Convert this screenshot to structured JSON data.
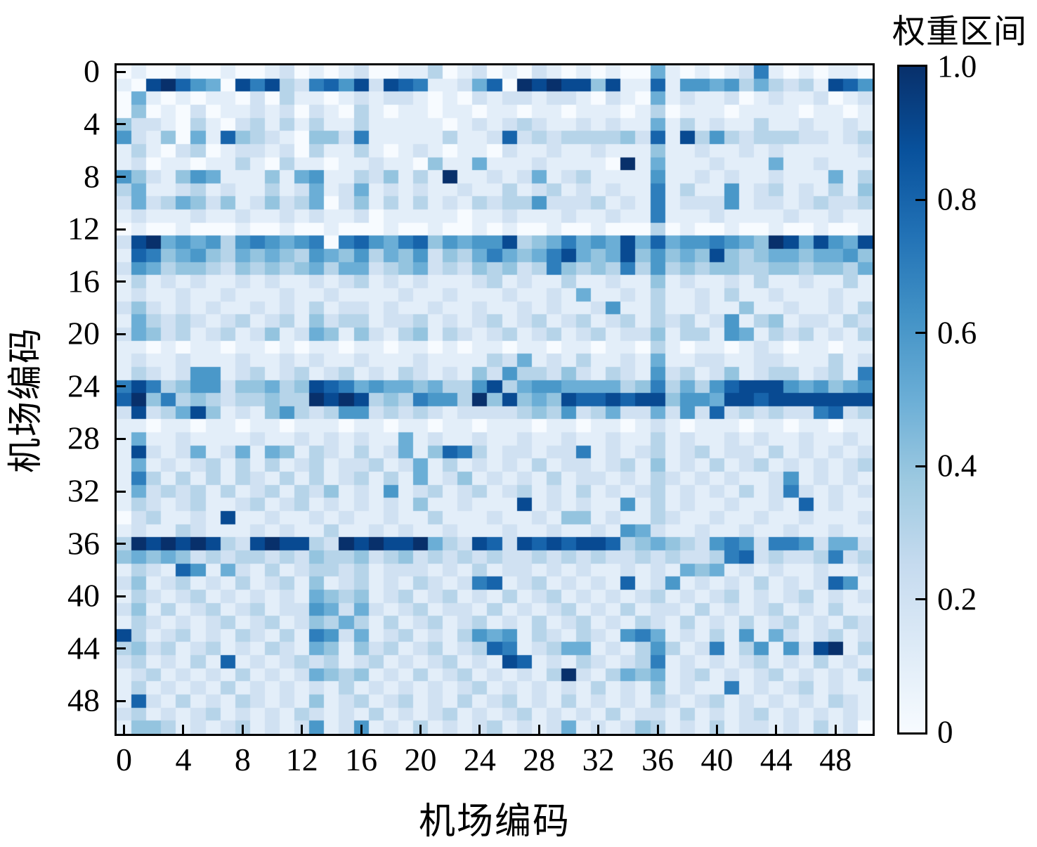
{
  "figure": {
    "xlabel": "机场编码",
    "ylabel": "机场编码",
    "colorbar_title": "权重区间",
    "x_ticks": [
      "0",
      "4",
      "8",
      "12",
      "16",
      "20",
      "24",
      "28",
      "32",
      "36",
      "40",
      "44",
      "48"
    ],
    "y_ticks": [
      "0",
      "4",
      "8",
      "12",
      "16",
      "20",
      "24",
      "28",
      "32",
      "36",
      "40",
      "44",
      "48"
    ],
    "colorbar_ticks": [
      {
        "label": "1.0",
        "value": 1.0
      },
      {
        "label": "0.8",
        "value": 0.8
      },
      {
        "label": "0.6",
        "value": 0.6
      },
      {
        "label": "0.4",
        "value": 0.4
      },
      {
        "label": "0.2",
        "value": 0.2
      },
      {
        "label": "0",
        "value": 0.0
      }
    ],
    "colors": {
      "background": "#ffffff",
      "axis": "#000000",
      "text": "#000000"
    }
  },
  "chart_data": {
    "type": "heatmap",
    "title": "",
    "xlabel": "机场编码",
    "ylabel": "机场编码",
    "colorbar_label": "权重区间",
    "n_rows": 51,
    "n_cols": 51,
    "x_range": [
      0,
      50
    ],
    "y_range": [
      0,
      50
    ],
    "value_range": [
      0,
      1
    ],
    "grid": false,
    "colormap": "Blues",
    "colormap_stops": [
      {
        "t": 0.0,
        "color": "#f7fbff"
      },
      {
        "t": 0.125,
        "color": "#deebf7"
      },
      {
        "t": 0.25,
        "color": "#c6dbef"
      },
      {
        "t": 0.375,
        "color": "#9ecae1"
      },
      {
        "t": 0.5,
        "color": "#6baed6"
      },
      {
        "t": 0.625,
        "color": "#4292c6"
      },
      {
        "t": 0.75,
        "color": "#2171b5"
      },
      {
        "t": 0.875,
        "color": "#08519c"
      },
      {
        "t": 1.0,
        "color": "#08306b"
      }
    ],
    "value_encoding": "Each row is a 51-character string; each character is the cell weight multiplied by 10 (0-9), with 'a' meaning 1.0. Values estimated from the rendered colors.",
    "rows": [
      "010010010012010120011301201021010100510101271010110",
      "109a86509793278692987112580a9a994911816656353231986",
      "051010110203110121221010212212210210512112012112012",
      "040102011212021031011011011011011101301110111101101",
      "422103102313131131111101212321121211513121131121121",
      "621405184321044271111131128232333342819363233322123",
      "131023012212031131012101102112112111411211212111112",
      "1201101131031101121104115111211110a1511121115112111",
      "6421465111415611324131a1121251231111611212112111513",
      "351123121131251251212112113123121211713116123121314",
      "252354241242350241313121323362223121712226122123223",
      "121112112112121120111110112111211211711121111211211",
      "010010001001001000100100101001001000301001001001001",
      "29a56563676567078657846566934575659585667654a959659",
      "187456435454365463546243575457954594645494345545564",
      "265344324343453552345232434237434373634344334434435",
      "131212112121121231212111231211311211412112131121131",
      "121121121112112111121121112112151121311213112111211",
      "242121211212131221211211211212112611311211411211213",
      "153232123123142331223121231231231231323126134122132",
      "254231231241254142134132123123123122413316513231213",
      "110101101101011011011010110110110110310110121011011",
      "121121112112121121112111132512131121511221122111312",
      "132126612312312312132121426332421321623124123312317",
      "797346624453498756554533693566555534735368999656456",
      "8a47343233433a9a93437663a49454988989946659989999999",
      "292359412146323662323212222343623522526282323227823",
      "110110110110111011011011011101101101210111011011011",
      "151121111211212121151211211211211211312112121121121",
      "192125125154132131251487312212271212312312213121212",
      "151212313131231223125131212131221231412131231212123",
      "173131313213131231315124121213122121321212112612121",
      "152323131231324121612312312312131212312121312721212",
      "132123112312312121214112111912121161312112112181211",
      "023112191121121211211311121121441211321121121121112",
      "121132111212113112121121112112112165211211211211211",
      "3a9a9a9329a9932a9a99a532982989899834543267627762552",
      "454542323323243342342323232232323223232237823223723",
      "132186152131233231222121312212121121215451212112112",
      "241231213123141231213212781231212181261212131212861",
      "132123121212154341231231213123121212312123121231212",
      "241312312312265252123122131212312131221312123121311",
      "132121231231243531312312312131231213213121312312132",
      "931231213213176251231213656132132167512131615212312",
      "342312312132154142312312387123551213631271361629a13",
      "231213181212323123121231219812132123712121231213121",
      "123121213121254341213123121213a21354512312123121213",
      "131212131212121312121212312121213121412117121231211",
      "182131213212141231231213123121312121321231212121321",
      "231212312121321213121231212312121312213121231212121",
      "144312123121261261213121231212512124312131221213120"
    ]
  }
}
